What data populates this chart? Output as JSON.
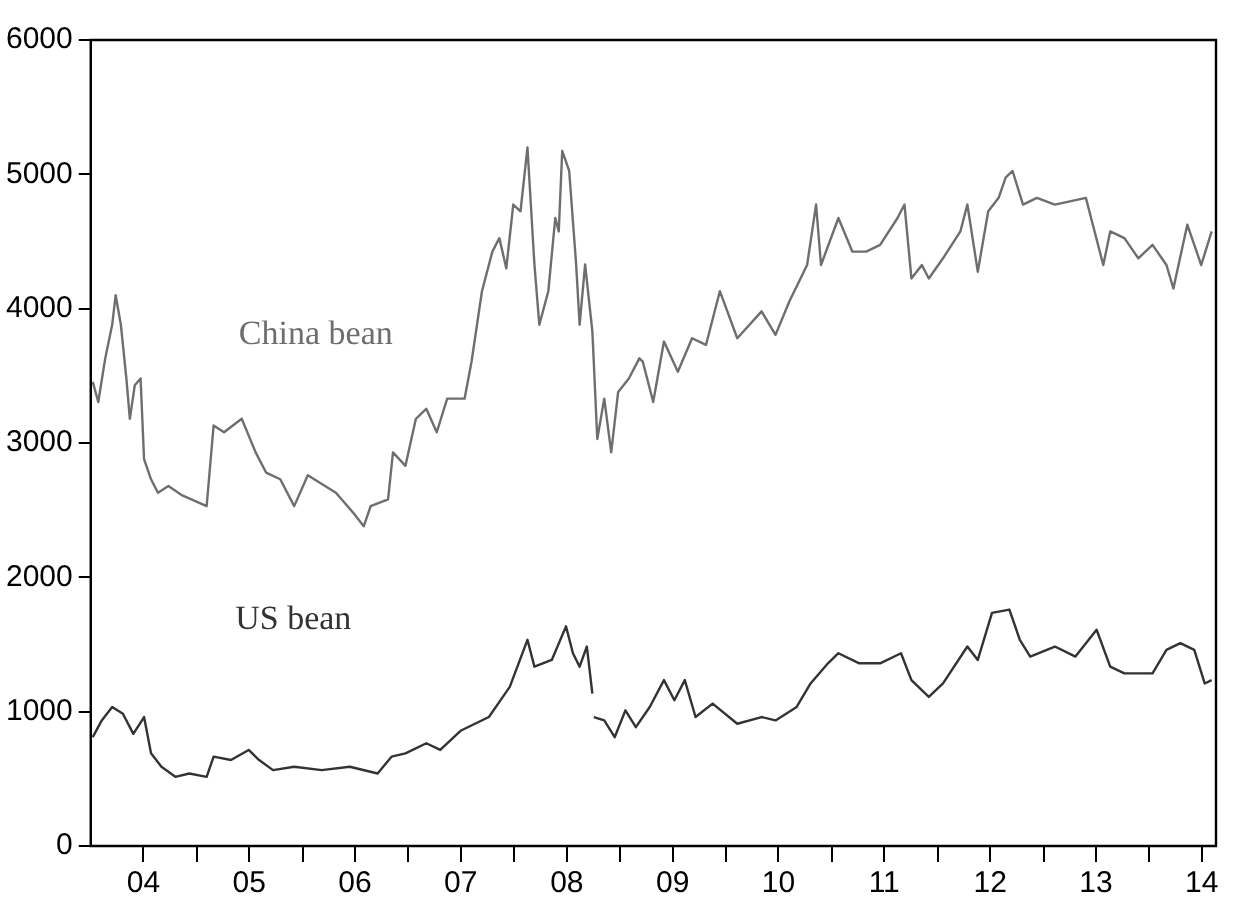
{
  "chart_data": {
    "type": "line",
    "xlim": [
      "2004-01-01",
      "2014-08-19"
    ],
    "ylim": [
      0,
      6000
    ],
    "yticks": [
      0,
      1000,
      2000,
      3000,
      4000,
      5000,
      6000
    ],
    "xticks": [
      {
        "value": "2004-07-01",
        "label": "04"
      },
      {
        "value": "2005-01-01",
        "label": null
      },
      {
        "value": "2005-07-01",
        "label": "05"
      },
      {
        "value": "2006-01-01",
        "label": null
      },
      {
        "value": "2006-07-01",
        "label": "06"
      },
      {
        "value": "2007-01-01",
        "label": null
      },
      {
        "value": "2007-07-01",
        "label": "07"
      },
      {
        "value": "2008-01-01",
        "label": null
      },
      {
        "value": "2008-07-01",
        "label": "08"
      },
      {
        "value": "2009-01-01",
        "label": null
      },
      {
        "value": "2009-07-01",
        "label": "09"
      },
      {
        "value": "2010-01-01",
        "label": null
      },
      {
        "value": "2010-07-01",
        "label": "10"
      },
      {
        "value": "2011-01-01",
        "label": null
      },
      {
        "value": "2011-07-01",
        "label": "11"
      },
      {
        "value": "2012-01-01",
        "label": null
      },
      {
        "value": "2012-07-01",
        "label": "12"
      },
      {
        "value": "2013-01-01",
        "label": null
      },
      {
        "value": "2013-07-01",
        "label": "13"
      },
      {
        "value": "2014-01-01",
        "label": null
      },
      {
        "value": "2014-07-01",
        "label": "14"
      }
    ],
    "grid": false,
    "legend": false,
    "marker": "none",
    "line_style": "solid",
    "series": [
      {
        "name": "China bean",
        "color": "#6e6e6e",
        "x": [
          "2004-01-08",
          "2004-01-27",
          "2004-02-20",
          "2004-03-15",
          "2004-03-27",
          "2004-04-14",
          "2004-05-03",
          "2004-05-15",
          "2004-06-01",
          "2004-06-21",
          "2004-07-03",
          "2004-07-27",
          "2004-08-20",
          "2004-09-25",
          "2004-11-12",
          "2005-02-04",
          "2005-02-28",
          "2005-04-05",
          "2005-06-05",
          "2005-07-23",
          "2005-08-28",
          "2005-10-16",
          "2005-12-03",
          "2006-01-19",
          "2006-04-26",
          "2006-06-25",
          "2006-07-31",
          "2006-08-24",
          "2006-10-23",
          "2006-11-09",
          "2006-12-22",
          "2007-01-27",
          "2007-03-04",
          "2007-04-09",
          "2007-05-15",
          "2007-07-14",
          "2007-08-07",
          "2007-09-12",
          "2007-10-18",
          "2007-11-11",
          "2007-12-05",
          "2007-12-29",
          "2008-01-23",
          "2008-02-16",
          "2008-03-11",
          "2008-03-28",
          "2008-04-28",
          "2008-05-22",
          "2008-06-03",
          "2008-06-15",
          "2008-07-09",
          "2008-08-02",
          "2008-08-14",
          "2008-09-02",
          "2008-09-27",
          "2008-10-14",
          "2008-11-07",
          "2008-12-01",
          "2008-12-25",
          "2009-01-31",
          "2009-03-08",
          "2009-03-20",
          "2009-04-25",
          "2009-06-01",
          "2009-07-19",
          "2009-09-06",
          "2009-10-24",
          "2009-12-11",
          "2010-02-09",
          "2010-05-04",
          "2010-06-21",
          "2010-08-08",
          "2010-10-08",
          "2010-11-08",
          "2010-11-25",
          "2011-01-24",
          "2011-03-13",
          "2011-04-30",
          "2011-06-17",
          "2011-08-16",
          "2011-09-09",
          "2011-10-03",
          "2011-11-08",
          "2011-12-02",
          "2012-01-20",
          "2012-03-20",
          "2012-04-13",
          "2012-05-19",
          "2012-06-24",
          "2012-07-30",
          "2012-08-23",
          "2012-09-16",
          "2012-10-22",
          "2012-12-09",
          "2013-02-09",
          "2013-05-27",
          "2013-06-20",
          "2013-07-26",
          "2013-08-19",
          "2013-10-07",
          "2013-11-24",
          "2014-01-12",
          "2014-03-01",
          "2014-03-25",
          "2014-05-12",
          "2014-06-29",
          "2014-08-04"
        ],
        "values": [
          3455,
          3305,
          3630,
          3880,
          4100,
          3880,
          3480,
          3180,
          3430,
          3480,
          2880,
          2730,
          2630,
          2680,
          2610,
          2530,
          3130,
          3080,
          3180,
          2930,
          2780,
          2730,
          2530,
          2760,
          2630,
          2480,
          2380,
          2530,
          2580,
          2930,
          2830,
          3180,
          3255,
          3080,
          3330,
          3330,
          3605,
          4130,
          4425,
          4525,
          4300,
          4775,
          4725,
          5200,
          4330,
          3880,
          4130,
          4675,
          4575,
          5175,
          5025,
          4330,
          3880,
          4330,
          3830,
          3030,
          3330,
          2930,
          3380,
          3480,
          3630,
          3605,
          3305,
          3755,
          3530,
          3780,
          3730,
          4130,
          3780,
          3980,
          3805,
          4055,
          4325,
          4775,
          4325,
          4675,
          4425,
          4425,
          4475,
          4675,
          4775,
          4225,
          4325,
          4225,
          4375,
          4575,
          4775,
          4275,
          4725,
          4825,
          4975,
          5025,
          4775,
          4825,
          4775,
          4825,
          4625,
          4325,
          4575,
          4525,
          4375,
          4475,
          4325,
          4150,
          4625,
          4325,
          4575
        ]
      },
      {
        "name": "US bean",
        "color": "#333333",
        "x": [
          "2004-01-08",
          "2004-02-08",
          "2004-03-15",
          "2004-04-21",
          "2004-05-27",
          "2004-07-03",
          "2004-07-27",
          "2004-09-01",
          "2004-10-19",
          "2004-12-06",
          "2005-02-04",
          "2005-02-28",
          "2005-04-29",
          "2005-06-29",
          "2005-08-04",
          "2005-09-21",
          "2005-12-03",
          "2006-03-08",
          "2006-06-13",
          "2006-09-17",
          "2006-11-04",
          "2006-12-22",
          "2007-03-04",
          "2007-04-21",
          "2007-07-02",
          "2007-10-06",
          "2007-12-17",
          "2008-02-16",
          "2008-03-11",
          "2008-05-10",
          "2008-06-28",
          "2008-07-22",
          "2008-08-14",
          "2008-09-08",
          "2008-09-27",
          "2008-09-30",
          "2008-10-02",
          "2008-11-07",
          "2008-12-13",
          "2009-01-19",
          "2009-02-24",
          "2009-04-13",
          "2009-06-01",
          "2009-07-07",
          "2009-08-12",
          "2009-09-18",
          "2009-11-16",
          "2010-02-09",
          "2010-05-04",
          "2010-06-21",
          "2010-09-02",
          "2010-10-20",
          "2010-12-19",
          "2011-01-24",
          "2011-04-06",
          "2011-06-17",
          "2011-08-28",
          "2011-10-03",
          "2011-12-02",
          "2012-01-20",
          "2012-04-13",
          "2012-05-19",
          "2012-07-07",
          "2012-09-05",
          "2012-10-11",
          "2012-11-16",
          "2013-02-09",
          "2013-04-21",
          "2013-07-03",
          "2013-08-19",
          "2013-10-07",
          "2014-01-12",
          "2014-03-01",
          "2014-04-18",
          "2014-06-05",
          "2014-07-11",
          "2014-08-04"
        ],
        "values": [
          810,
          935,
          1035,
          985,
          835,
          960,
          690,
          590,
          515,
          540,
          515,
          665,
          640,
          715,
          640,
          565,
          590,
          565,
          590,
          540,
          665,
          690,
          765,
          715,
          860,
          960,
          1185,
          1535,
          1335,
          1385,
          1635,
          1435,
          1335,
          1485,
          1135,
          null,
          960,
          935,
          810,
          1010,
          885,
          1035,
          1235,
          1085,
          1235,
          960,
          1060,
          910,
          960,
          935,
          1035,
          1210,
          1360,
          1435,
          1360,
          1360,
          1435,
          1235,
          1110,
          1210,
          1485,
          1385,
          1735,
          1760,
          1535,
          1410,
          1485,
          1410,
          1610,
          1335,
          1285,
          1285,
          1460,
          1510,
          1460,
          1210,
          1235
        ]
      }
    ]
  }
}
